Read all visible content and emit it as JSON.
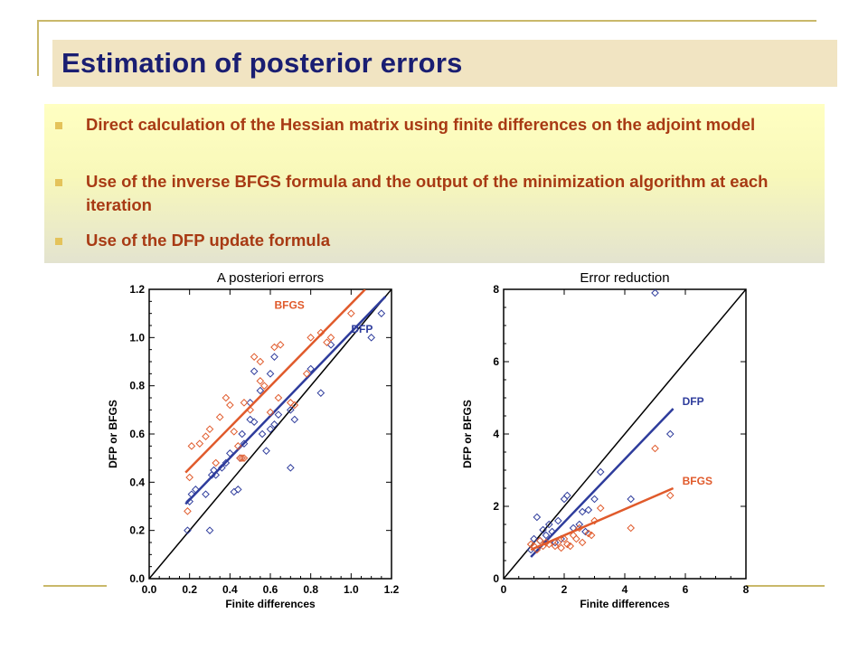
{
  "slide": {
    "title": "Estimation of posterior errors",
    "bullets": [
      "Direct calculation of the Hessian matrix using finite differences on the adjoint model",
      "Use of the inverse BFGS formula and the output of the minimization algorithm at each iteration",
      "Use of the DFP update formula"
    ]
  },
  "colors": {
    "title": "#1a1e72",
    "bullet_text": "#a83a14",
    "dfp": "#2e3c9c",
    "bfgs": "#e05a2b",
    "identity_line": "#000000"
  },
  "chart_data": [
    {
      "type": "scatter",
      "title": "A posteriori errors",
      "xlabel": "Finite differences",
      "ylabel": "DFP or BFGS",
      "xlim": [
        0.0,
        1.2
      ],
      "ylim": [
        0.0,
        1.2
      ],
      "xticks": [
        "0.0",
        "0.2",
        "0.4",
        "0.6",
        "0.8",
        "1.0",
        "1.2"
      ],
      "yticks": [
        "0.0",
        "0.2",
        "0.4",
        "0.6",
        "0.8",
        "1.0",
        "1.2"
      ],
      "identity_line": true,
      "series": [
        {
          "name": "DFP",
          "points": [
            [
              0.19,
              0.2
            ],
            [
              0.2,
              0.32
            ],
            [
              0.21,
              0.35
            ],
            [
              0.23,
              0.37
            ],
            [
              0.28,
              0.35
            ],
            [
              0.3,
              0.2
            ],
            [
              0.31,
              0.43
            ],
            [
              0.32,
              0.45
            ],
            [
              0.33,
              0.43
            ],
            [
              0.36,
              0.46
            ],
            [
              0.38,
              0.48
            ],
            [
              0.4,
              0.52
            ],
            [
              0.42,
              0.36
            ],
            [
              0.44,
              0.37
            ],
            [
              0.45,
              0.5
            ],
            [
              0.47,
              0.56
            ],
            [
              0.5,
              0.66
            ],
            [
              0.52,
              0.65
            ],
            [
              0.5,
              0.73
            ],
            [
              0.55,
              0.78
            ],
            [
              0.58,
              0.53
            ],
            [
              0.6,
              0.62
            ],
            [
              0.62,
              0.64
            ],
            [
              0.6,
              0.85
            ],
            [
              0.62,
              0.92
            ],
            [
              0.52,
              0.86
            ],
            [
              0.64,
              0.68
            ],
            [
              0.7,
              0.7
            ],
            [
              0.72,
              0.66
            ],
            [
              0.7,
              0.46
            ],
            [
              0.8,
              0.87
            ],
            [
              0.85,
              0.77
            ],
            [
              0.9,
              0.97
            ],
            [
              1.1,
              1.0
            ],
            [
              1.15,
              1.1
            ],
            [
              0.56,
              0.6
            ],
            [
              0.46,
              0.6
            ]
          ],
          "fit": [
            [
              0.18,
              0.31
            ],
            [
              1.17,
              1.17
            ]
          ]
        },
        {
          "name": "BFGS",
          "points": [
            [
              0.19,
              0.28
            ],
            [
              0.2,
              0.42
            ],
            [
              0.21,
              0.55
            ],
            [
              0.25,
              0.56
            ],
            [
              0.28,
              0.59
            ],
            [
              0.3,
              0.62
            ],
            [
              0.33,
              0.48
            ],
            [
              0.35,
              0.67
            ],
            [
              0.38,
              0.75
            ],
            [
              0.4,
              0.72
            ],
            [
              0.42,
              0.61
            ],
            [
              0.44,
              0.55
            ],
            [
              0.46,
              0.5
            ],
            [
              0.47,
              0.73
            ],
            [
              0.5,
              0.7
            ],
            [
              0.52,
              0.92
            ],
            [
              0.55,
              0.9
            ],
            [
              0.55,
              0.82
            ],
            [
              0.57,
              0.8
            ],
            [
              0.6,
              0.69
            ],
            [
              0.62,
              0.96
            ],
            [
              0.65,
              0.97
            ],
            [
              0.64,
              0.75
            ],
            [
              0.7,
              0.73
            ],
            [
              0.72,
              0.72
            ],
            [
              0.78,
              0.85
            ],
            [
              0.8,
              1.0
            ],
            [
              0.85,
              1.02
            ],
            [
              0.88,
              0.98
            ],
            [
              0.9,
              1.0
            ],
            [
              1.0,
              1.1
            ],
            [
              0.45,
              0.5
            ],
            [
              0.47,
              0.5
            ]
          ],
          "fit": [
            [
              0.18,
              0.44
            ],
            [
              1.07,
              1.2
            ]
          ]
        }
      ],
      "legend": [
        {
          "label": "BFGS",
          "position": "upper-middle"
        },
        {
          "label": "DFP",
          "position": "upper-right"
        }
      ]
    },
    {
      "type": "scatter",
      "title": "Error reduction",
      "xlabel": "Finite differences",
      "ylabel": "DFP or BFGS",
      "xlim": [
        0,
        8
      ],
      "ylim": [
        0,
        8
      ],
      "xticks": [
        "0",
        "2",
        "4",
        "6",
        "8"
      ],
      "yticks": [
        "0",
        "2",
        "4",
        "6",
        "8"
      ],
      "identity_line": true,
      "series": [
        {
          "name": "DFP",
          "points": [
            [
              0.9,
              0.8
            ],
            [
              1.0,
              1.1
            ],
            [
              1.1,
              1.7
            ],
            [
              1.2,
              1.05
            ],
            [
              1.3,
              1.35
            ],
            [
              1.4,
              1.2
            ],
            [
              1.5,
              1.5
            ],
            [
              1.6,
              1.3
            ],
            [
              1.8,
              1.6
            ],
            [
              1.9,
              1.1
            ],
            [
              2.0,
              2.2
            ],
            [
              2.1,
              2.3
            ],
            [
              2.3,
              1.4
            ],
            [
              2.5,
              1.5
            ],
            [
              2.6,
              1.85
            ],
            [
              2.8,
              1.9
            ],
            [
              3.0,
              2.2
            ],
            [
              3.2,
              2.95
            ],
            [
              4.2,
              2.2
            ],
            [
              5.0,
              7.9
            ],
            [
              5.5,
              4.0
            ],
            [
              2.7,
              1.3
            ],
            [
              1.7,
              1.0
            ]
          ],
          "fit": [
            [
              0.9,
              0.6
            ],
            [
              5.6,
              4.7
            ]
          ]
        },
        {
          "name": "BFGS",
          "points": [
            [
              0.9,
              0.95
            ],
            [
              1.0,
              0.9
            ],
            [
              1.1,
              0.8
            ],
            [
              1.2,
              1.05
            ],
            [
              1.3,
              0.9
            ],
            [
              1.5,
              0.95
            ],
            [
              1.7,
              0.9
            ],
            [
              1.8,
              1.0
            ],
            [
              1.9,
              0.85
            ],
            [
              2.0,
              1.1
            ],
            [
              2.1,
              0.95
            ],
            [
              2.2,
              0.9
            ],
            [
              2.4,
              1.1
            ],
            [
              2.5,
              1.4
            ],
            [
              2.6,
              1.0
            ],
            [
              2.8,
              1.25
            ],
            [
              3.0,
              1.6
            ],
            [
              3.2,
              1.95
            ],
            [
              4.2,
              1.4
            ],
            [
              5.0,
              3.6
            ],
            [
              5.5,
              2.3
            ],
            [
              1.4,
              1.0
            ],
            [
              2.3,
              1.2
            ],
            [
              2.9,
              1.2
            ]
          ],
          "fit": [
            [
              0.9,
              0.8
            ],
            [
              5.6,
              2.5
            ]
          ]
        }
      ],
      "legend": [
        {
          "label": "DFP",
          "position": "right"
        },
        {
          "label": "BFGS",
          "position": "lower-right"
        }
      ]
    }
  ]
}
